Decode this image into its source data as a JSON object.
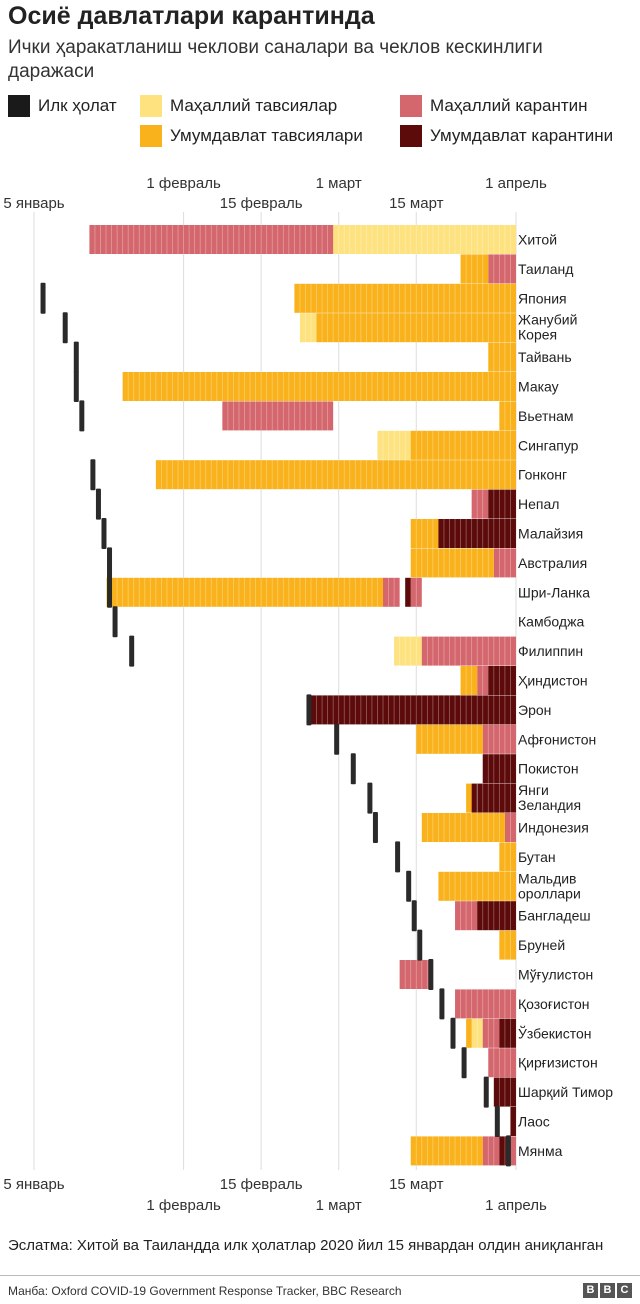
{
  "title": "Осиё давлатлари карантинда",
  "subtitle": "Ички ҳаракатланиш чеклови саналари ва чеклов кескинлиги даражаси",
  "legend": [
    {
      "label": "Илк ҳолат",
      "color": "#1a1a1a"
    },
    {
      "label": "Маҳаллий тавсиялар",
      "color": "#fde27f"
    },
    {
      "label": "Маҳаллий карантин",
      "color": "#d4676d"
    },
    {
      "label": "Умумдавлат тавсиялари",
      "color": "#f9b21b"
    },
    {
      "label": "Умумдавлат карантини",
      "color": "#5c0a0a"
    }
  ],
  "chart_data": {
    "type": "timeline",
    "title": "Осиё давлатлари карантинда",
    "x_unit": "days since 5 January 2020",
    "xlim": [
      -1,
      87
    ],
    "ticks_top": [
      {
        "label": "1 февраль",
        "day": 27
      },
      {
        "label": "1 март",
        "day": 55
      },
      {
        "label": "1 апрель",
        "day": 87
      }
    ],
    "ticks_bottom": [
      {
        "label": "5 январь",
        "day": 0
      },
      {
        "label": "15 февраль",
        "day": 41
      },
      {
        "label": "15 март",
        "day": 69
      }
    ],
    "gridlines": [
      0,
      27,
      41,
      55,
      69,
      87
    ],
    "categories": [
      "Хитой",
      "Таиланд",
      "Япония",
      "Жанубий Корея",
      "Тайвань",
      "Макау",
      "Вьетнам",
      "Сингапур",
      "Гонконг",
      "Непал",
      "Малайзия",
      "Австралия",
      "Шри-Ланка",
      "Камбоджа",
      "Филиппин",
      "Ҳиндистон",
      "Эрон",
      "Афғонистон",
      "Покистон",
      "Янги Зеландия",
      "Индонезия",
      "Бутан",
      "Мальдив ороллари",
      "Бангладеш",
      "Бруней",
      "Мўғулистон",
      "Қозоғистон",
      "Ўзбекистон",
      "Қирғизистон",
      "Шарқий Тимор",
      "Лаос",
      "Мянма"
    ],
    "first_case_day": [
      null,
      null,
      1,
      5,
      7,
      7,
      8,
      null,
      10,
      11,
      12,
      13,
      13,
      14,
      17,
      null,
      49,
      54,
      57,
      60,
      61,
      65,
      67,
      68,
      69,
      71,
      73,
      75,
      77,
      81,
      83,
      85
    ],
    "series": [
      {
        "name": "Маҳаллий тавсиялар",
        "color": "#fde27f",
        "segments": [
          [
            0,
            54,
            87
          ],
          [
            3,
            48,
            51
          ],
          [
            7,
            62,
            68
          ],
          [
            12,
            13,
            14
          ],
          [
            14,
            65,
            70
          ],
          [
            19,
            79,
            81
          ],
          [
            27,
            79,
            81
          ]
        ]
      },
      {
        "name": "Маҳаллий карантин",
        "color": "#d4676d",
        "segments": [
          [
            0,
            10,
            54
          ],
          [
            1,
            82,
            87
          ],
          [
            6,
            34,
            54
          ],
          [
            9,
            79,
            82
          ],
          [
            11,
            83,
            87
          ],
          [
            12,
            63,
            66
          ],
          [
            12,
            68,
            70
          ],
          [
            14,
            70,
            87
          ],
          [
            15,
            80,
            82
          ],
          [
            17,
            81,
            87
          ],
          [
            20,
            85,
            87
          ],
          [
            23,
            76,
            80
          ],
          [
            25,
            66,
            72
          ],
          [
            26,
            76,
            87
          ],
          [
            27,
            81,
            84
          ],
          [
            28,
            82,
            87
          ],
          [
            31,
            81,
            84
          ],
          [
            31,
            86,
            87
          ]
        ]
      },
      {
        "name": "Умумдавлат тавсиялари",
        "color": "#f9b21b",
        "segments": [
          [
            1,
            77,
            82
          ],
          [
            2,
            47,
            87
          ],
          [
            3,
            51,
            87
          ],
          [
            4,
            82,
            87
          ],
          [
            5,
            16,
            87
          ],
          [
            6,
            84,
            87
          ],
          [
            7,
            68,
            87
          ],
          [
            8,
            22,
            87
          ],
          [
            10,
            68,
            73
          ],
          [
            11,
            68,
            83
          ],
          [
            12,
            14,
            63
          ],
          [
            15,
            77,
            80
          ],
          [
            17,
            69,
            81
          ],
          [
            19,
            78,
            79
          ],
          [
            20,
            70,
            85
          ],
          [
            21,
            84,
            87
          ],
          [
            22,
            73,
            87
          ],
          [
            24,
            84,
            87
          ],
          [
            27,
            78,
            79
          ],
          [
            31,
            68,
            81
          ]
        ]
      },
      {
        "name": "Умумдавлат карантини",
        "color": "#5c0a0a",
        "segments": [
          [
            9,
            82,
            87
          ],
          [
            10,
            73,
            87
          ],
          [
            12,
            67,
            68
          ],
          [
            15,
            82,
            87
          ],
          [
            16,
            50,
            87
          ],
          [
            18,
            81,
            87
          ],
          [
            19,
            79,
            87
          ],
          [
            23,
            80,
            87
          ],
          [
            27,
            84,
            87
          ],
          [
            29,
            83,
            87
          ],
          [
            30,
            86,
            87
          ],
          [
            31,
            84,
            86
          ]
        ]
      }
    ]
  },
  "note": "Эслатма: Хитой ва Таиландда илк ҳолатлар 2020 йил 15 январдан олдин аниқланган",
  "source": "Манба: Oxford COVID-19 Government Response Tracker, BBC Research",
  "logo": [
    "B",
    "B",
    "C"
  ]
}
